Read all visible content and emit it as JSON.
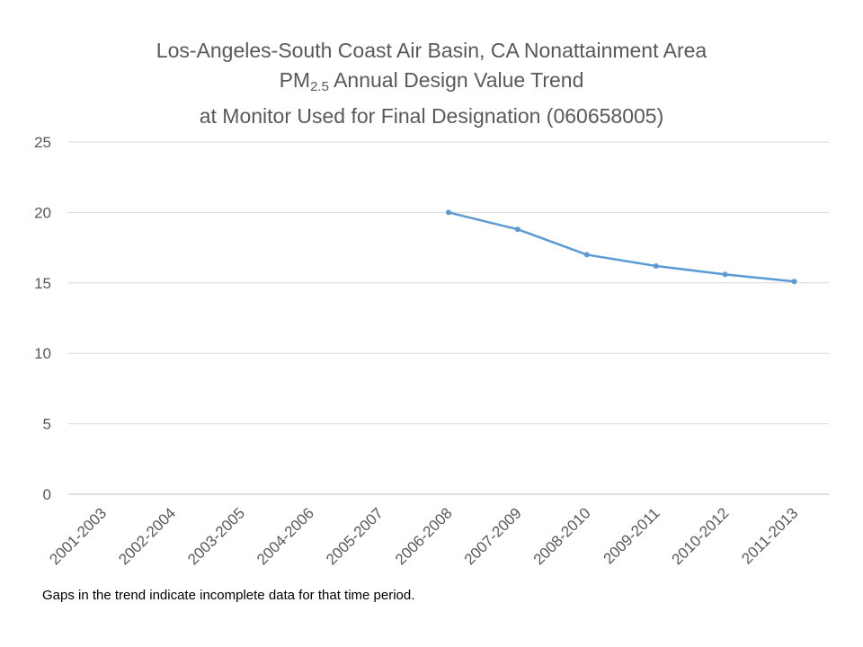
{
  "chart_data": {
    "type": "line",
    "title_line1": "Los-Angeles-South Coast Air Basin, CA Nonattainment Area",
    "title_line2_prefix": "PM",
    "title_line2_subscript": "2.5",
    "title_line2_suffix": " Annual Design Value Trend",
    "title_line3": "at Monitor Used for Final Designation (060658005)",
    "xlabel": "",
    "ylabel": "",
    "categories": [
      "2001-2003",
      "2002-2004",
      "2003-2005",
      "2004-2006",
      "2005-2007",
      "2006-2008",
      "2007-2009",
      "2008-2010",
      "2009-2011",
      "2010-2012",
      "2011-2013"
    ],
    "series": [
      {
        "values": [
          null,
          null,
          null,
          null,
          null,
          20.0,
          18.8,
          17.0,
          16.2,
          15.6,
          15.1
        ],
        "color": "#5b9bd5"
      }
    ],
    "ylim": [
      0,
      25
    ],
    "yticks": [
      "0",
      "5",
      "10",
      "15",
      "20",
      "25"
    ],
    "grid": true,
    "legend": "none"
  },
  "footnote": "Gaps in the trend indicate incomplete data for that time period."
}
